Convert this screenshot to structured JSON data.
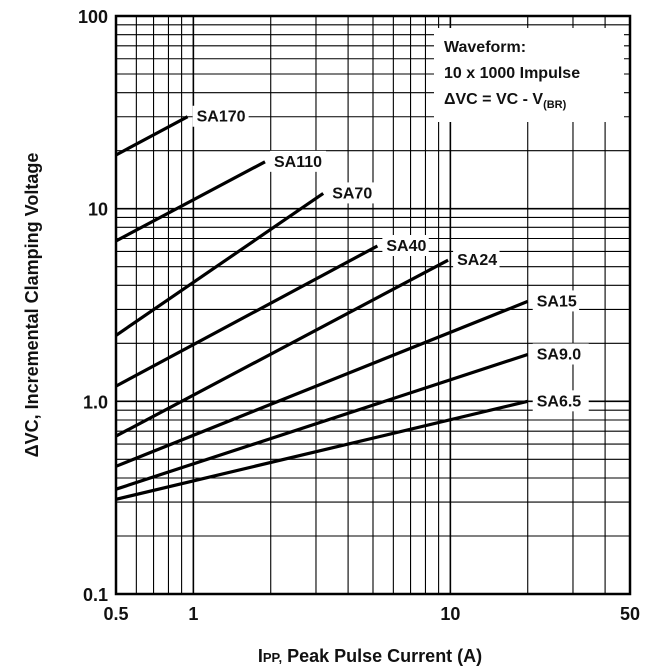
{
  "chart_data": {
    "type": "line",
    "x_scale": "log",
    "y_scale": "log",
    "xlim": [
      0.5,
      50
    ],
    "ylim": [
      0.1,
      100
    ],
    "grid": true,
    "xlabel_main": "I",
    "xlabel_sub": "PP,",
    "xlabel_rest": " Peak Pulse Current (A)",
    "ylabel": "ΔVC, Incremental Clamping Voltage",
    "x_ticks": [
      "0.5",
      "1",
      "10",
      "50"
    ],
    "x_tick_values": [
      0.5,
      1,
      10,
      50
    ],
    "y_ticks": [
      "100",
      "10",
      "1.0",
      "0.1"
    ],
    "y_tick_values": [
      100,
      10,
      1,
      0.1
    ],
    "annotation": {
      "line1": "Waveform:",
      "line2": "10 x 1000 Impulse",
      "line3_main": "ΔVC = VC - V",
      "line3_sub": "(BR)"
    },
    "series": [
      {
        "name": "SA170",
        "x": [
          0.5,
          0.95
        ],
        "y": [
          19,
          30
        ]
      },
      {
        "name": "SA110",
        "x": [
          0.5,
          1.9
        ],
        "y": [
          6.8,
          17.5
        ]
      },
      {
        "name": "SA70",
        "x": [
          0.5,
          3.2
        ],
        "y": [
          2.2,
          12
        ]
      },
      {
        "name": "SA40",
        "x": [
          0.5,
          5.2
        ],
        "y": [
          1.2,
          6.4
        ]
      },
      {
        "name": "SA24",
        "x": [
          0.5,
          9.8
        ],
        "y": [
          0.66,
          5.4
        ]
      },
      {
        "name": "SA15",
        "x": [
          0.5,
          20
        ],
        "y": [
          0.46,
          3.3
        ]
      },
      {
        "name": "SA9.0",
        "x": [
          0.5,
          20
        ],
        "y": [
          0.35,
          1.75
        ]
      },
      {
        "name": "SA6.5",
        "x": [
          0.5,
          20
        ],
        "y": [
          0.31,
          1.0
        ]
      }
    ]
  }
}
